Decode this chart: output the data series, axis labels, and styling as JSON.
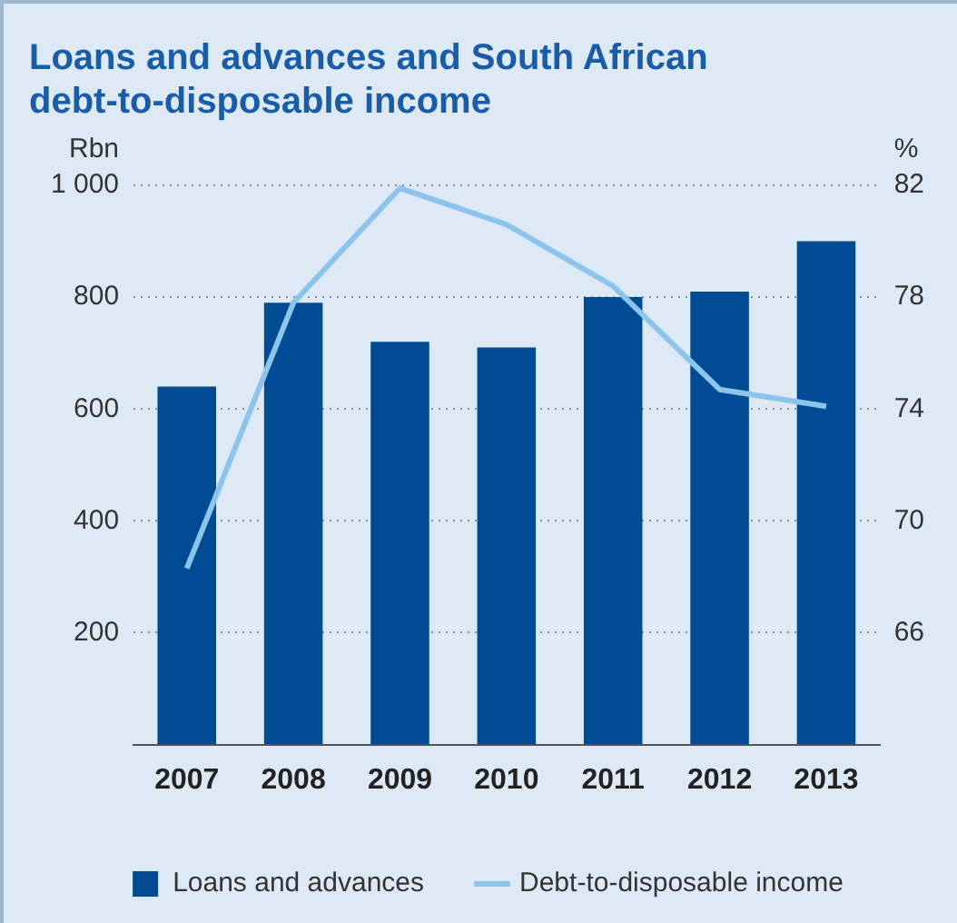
{
  "chart_data": {
    "type": "bar",
    "title": "Loans and advances and South African debt-to-disposable income",
    "ylabel": "Rbn",
    "y2label": "%",
    "categories": [
      "2007",
      "2008",
      "2009",
      "2010",
      "2011",
      "2012",
      "2013"
    ],
    "series": [
      {
        "name": "Loans and advances",
        "color": "#004b93",
        "values": [
          640,
          790,
          720,
          710,
          800,
          810,
          900
        ]
      },
      {
        "name": "Debt-to-disposable income",
        "type": "line",
        "axis": "y2",
        "color": "#8cc4ec",
        "marker": "none",
        "values": [
          68.3,
          77.8,
          81.9,
          80.6,
          78.4,
          74.7,
          74.1
        ]
      }
    ],
    "ylim": [
      0,
      1000
    ],
    "yticks": [
      200,
      400,
      600,
      800,
      {
        "value": 1000,
        "label": "1 000"
      }
    ],
    "y2lim": [
      62,
      82
    ],
    "y2ticks": [
      66,
      70,
      74,
      78,
      82
    ],
    "grid": "y",
    "legend": "bottom"
  }
}
